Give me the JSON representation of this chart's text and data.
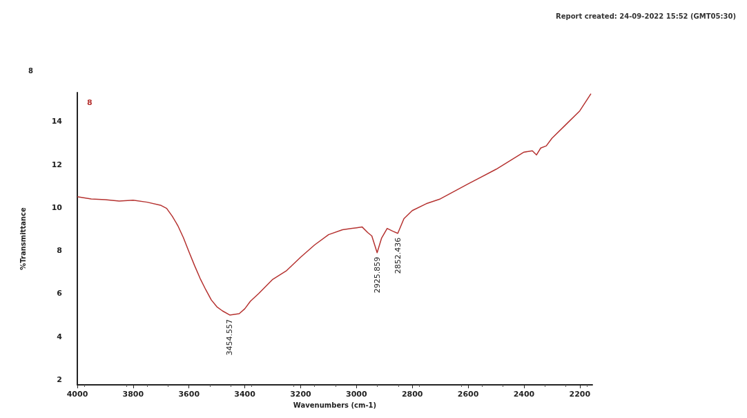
{
  "chart_data": {
    "type": "line",
    "title": "8",
    "xlabel": "Wavenumbers (cm-1)",
    "ylabel": "%Transmittance",
    "annotations": [
      "Report created: 24-09-2022 15:52 (GMT05:30)",
      {
        "text": "3454.557",
        "x": 3454.557,
        "y": 5.0
      },
      {
        "text": "2925.859",
        "x": 2925.859,
        "y": 7.9
      },
      {
        "text": "2852.436",
        "x": 2852.436,
        "y": 8.8
      }
    ],
    "xlim": [
      4000,
      2155
    ],
    "xticks": [
      4000,
      3800,
      3600,
      3400,
      3200,
      3000,
      2800,
      2600,
      2400,
      2200
    ],
    "ylim": [
      1.75,
      15.35
    ],
    "yticks": [
      2,
      4,
      6,
      8,
      10,
      12,
      14
    ],
    "grid": false,
    "legend": "top left",
    "marker": "none",
    "line_style": "solid",
    "series": [
      {
        "name": "8",
        "color": "#b5312f",
        "x": [
          4000,
          3950,
          3900,
          3850,
          3800,
          3750,
          3700,
          3680,
          3660,
          3640,
          3620,
          3600,
          3580,
          3560,
          3540,
          3520,
          3500,
          3480,
          3454,
          3420,
          3400,
          3380,
          3350,
          3300,
          3250,
          3200,
          3150,
          3100,
          3050,
          3000,
          2980,
          2960,
          2945,
          2926,
          2910,
          2890,
          2870,
          2852,
          2830,
          2800,
          2750,
          2700,
          2600,
          2500,
          2400,
          2370,
          2355,
          2340,
          2320,
          2300,
          2250,
          2200,
          2160
        ],
        "values": [
          10.5,
          10.4,
          10.37,
          10.3,
          10.34,
          10.25,
          10.1,
          9.96,
          9.6,
          9.16,
          8.6,
          7.94,
          7.3,
          6.7,
          6.18,
          5.7,
          5.38,
          5.19,
          5.0,
          5.06,
          5.29,
          5.64,
          6.0,
          6.66,
          7.07,
          7.69,
          8.26,
          8.74,
          8.97,
          9.06,
          9.1,
          8.84,
          8.68,
          7.9,
          8.58,
          9.03,
          8.9,
          8.8,
          9.48,
          9.86,
          10.18,
          10.4,
          11.1,
          11.78,
          12.58,
          12.64,
          12.45,
          12.77,
          12.87,
          13.22,
          13.86,
          14.5,
          15.3
        ]
      }
    ]
  }
}
